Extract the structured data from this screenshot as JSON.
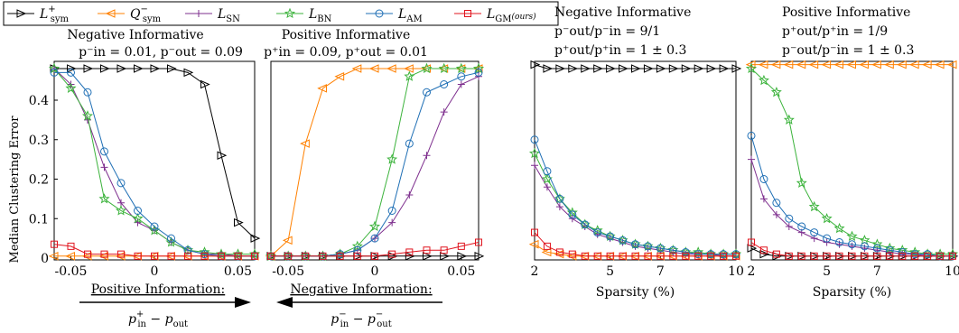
{
  "legend": {
    "entries": [
      {
        "base": "L",
        "sup": "+",
        "sub": "sym",
        "color": "#000000",
        "marker": "triangle-right"
      },
      {
        "base": "Q",
        "sup": "−",
        "sub": "sym",
        "color": "#ff8000",
        "marker": "triangle-left"
      },
      {
        "base": "L",
        "sup": "",
        "sub": "SN",
        "color": "#7e2f8e",
        "marker": "plus"
      },
      {
        "base": "L",
        "sup": "",
        "sub": "BN",
        "color": "#3cb33c",
        "marker": "star"
      },
      {
        "base": "L",
        "sup": "",
        "sub": "AM",
        "color": "#1f6fb5",
        "marker": "circle"
      },
      {
        "base": "L",
        "sup": "",
        "sub": "GM",
        "sub2": "(ours)",
        "color": "#e0141e",
        "marker": "square"
      }
    ]
  },
  "shared": {
    "ylabel": "Median Clustering Error",
    "xlabel_sparsity": "Sparsity (%)"
  },
  "bottom_labels": {
    "left_title": "Positive Information:",
    "left_formula_p1": "p",
    "left_formula_sup1": "+",
    "left_formula_sub1": "in",
    "left_formula_op": " − ",
    "left_formula_p2": "p",
    "left_formula_sub2": "out",
    "right_title": "Negative Information:",
    "right_formula_p1": "p",
    "right_formula_sup1": "−",
    "right_formula_sub1": "in",
    "right_formula_op": " − ",
    "right_formula_p2": "p",
    "right_formula_sup2": "−",
    "right_formula_sub2": "out"
  },
  "panel_titles": {
    "p1_line1": "Negative Informative",
    "p1_line2": "p⁻in = 0.01, p⁻out = 0.09",
    "p2_line1": "Positive Informative",
    "p2_line2": "p⁺in = 0.09, p⁺out = 0.01",
    "p3_line1": "Negative Informative",
    "p3_line2": "p⁻out/p⁻in = 9/1",
    "p3_line3": "p⁺out/p⁺in = 1 ± 0.3",
    "p4_line1": "Positive Informative",
    "p4_line2": "p⁺out/p⁺in = 1/9",
    "p4_line3": "p⁻out/p⁻in = 1 ± 0.3"
  },
  "chart_data": [
    {
      "type": "line",
      "panel": 1,
      "x": [
        -0.06,
        -0.05,
        -0.04,
        -0.03,
        -0.02,
        -0.01,
        0,
        0.01,
        0.02,
        0.03,
        0.04,
        0.05,
        0.06
      ],
      "xlim": [
        -0.06,
        0.06
      ],
      "xticks": [
        -0.05,
        0,
        0.05
      ],
      "xticklabels": [
        "-0.05",
        "0",
        "0.05"
      ],
      "ylim": [
        0,
        0.48
      ],
      "yticks": [
        0,
        0.1,
        0.2,
        0.3,
        0.4
      ],
      "yticklabels": [
        "0",
        "0.1",
        "0.2",
        "0.3",
        "0.4"
      ],
      "series": [
        {
          "name": "Lsym+",
          "values": [
            0.48,
            0.48,
            0.48,
            0.48,
            0.48,
            0.48,
            0.48,
            0.48,
            0.47,
            0.44,
            0.26,
            0.09,
            0.05
          ]
        },
        {
          "name": "Qsym-",
          "values": [
            0.005,
            0.005,
            0.005,
            0.005,
            0.005,
            0.005,
            0.005,
            0.005,
            0.005,
            0.005,
            0.005,
            0.005,
            0.005
          ]
        },
        {
          "name": "LSN",
          "values": [
            0.48,
            0.44,
            0.35,
            0.23,
            0.14,
            0.09,
            0.07,
            0.04,
            0.02,
            0.01,
            0.01,
            0.005,
            0.005
          ]
        },
        {
          "name": "LBN",
          "values": [
            0.48,
            0.43,
            0.36,
            0.15,
            0.12,
            0.1,
            0.07,
            0.04,
            0.02,
            0.015,
            0.01,
            0.01,
            0.01
          ]
        },
        {
          "name": "LAM",
          "values": [
            0.47,
            0.47,
            0.42,
            0.27,
            0.19,
            0.12,
            0.08,
            0.05,
            0.02,
            0.01,
            0.005,
            0.005,
            0.005
          ]
        },
        {
          "name": "LGM(ours)",
          "values": [
            0.035,
            0.03,
            0.01,
            0.01,
            0.01,
            0.005,
            0.005,
            0.005,
            0.005,
            0.005,
            0.005,
            0.005,
            0.005
          ]
        }
      ]
    },
    {
      "type": "line",
      "panel": 2,
      "x": [
        -0.06,
        -0.05,
        -0.04,
        -0.03,
        -0.02,
        -0.01,
        0,
        0.01,
        0.02,
        0.03,
        0.04,
        0.05,
        0.06
      ],
      "xlim": [
        -0.06,
        0.06
      ],
      "xticks": [
        -0.05,
        0,
        0.05
      ],
      "xticklabels": [
        "-0.05",
        "0",
        "0.05"
      ],
      "ylim": [
        0,
        0.48
      ],
      "series": [
        {
          "name": "Lsym+",
          "values": [
            0.005,
            0.005,
            0.005,
            0.005,
            0.005,
            0.005,
            0.005,
            0.005,
            0.005,
            0.005,
            0.005,
            0.005,
            0.005
          ]
        },
        {
          "name": "Qsym-",
          "values": [
            0.005,
            0.045,
            0.29,
            0.43,
            0.46,
            0.48,
            0.48,
            0.48,
            0.48,
            0.48,
            0.48,
            0.48,
            0.48
          ]
        },
        {
          "name": "LSN",
          "values": [
            0.005,
            0.005,
            0.005,
            0.005,
            0.01,
            0.02,
            0.05,
            0.09,
            0.16,
            0.26,
            0.37,
            0.44,
            0.46
          ]
        },
        {
          "name": "LBN",
          "values": [
            0.005,
            0.005,
            0.005,
            0.005,
            0.01,
            0.03,
            0.08,
            0.25,
            0.46,
            0.48,
            0.48,
            0.48,
            0.48
          ]
        },
        {
          "name": "LAM",
          "values": [
            0.005,
            0.005,
            0.005,
            0.005,
            0.01,
            0.02,
            0.05,
            0.12,
            0.29,
            0.42,
            0.44,
            0.46,
            0.47
          ]
        },
        {
          "name": "LGM(ours)",
          "values": [
            0.005,
            0.005,
            0.005,
            0.005,
            0.005,
            0.005,
            0.005,
            0.01,
            0.015,
            0.02,
            0.02,
            0.03,
            0.04
          ]
        }
      ]
    },
    {
      "type": "line",
      "panel": 3,
      "x": [
        2,
        2.5,
        3,
        3.5,
        4,
        4.5,
        5,
        5.5,
        6,
        6.5,
        7,
        7.5,
        8,
        8.5,
        9,
        9.5,
        10
      ],
      "xlim": [
        2,
        10
      ],
      "xticks": [
        2,
        5,
        7,
        10
      ],
      "xticklabels": [
        "2",
        "5",
        "7",
        "10"
      ],
      "xlabel": "Sparsity (%)",
      "ylim": [
        0,
        0.48
      ],
      "series": [
        {
          "name": "Lsym+",
          "values": [
            0.49,
            0.48,
            0.48,
            0.48,
            0.48,
            0.48,
            0.48,
            0.48,
            0.48,
            0.48,
            0.48,
            0.48,
            0.48,
            0.48,
            0.48,
            0.48,
            0.48
          ]
        },
        {
          "name": "Qsym-",
          "values": [
            0.035,
            0.015,
            0.01,
            0.005,
            0.005,
            0.005,
            0.005,
            0.005,
            0.005,
            0.005,
            0.005,
            0.005,
            0.005,
            0.005,
            0.005,
            0.005,
            0.005
          ]
        },
        {
          "name": "LSN",
          "values": [
            0.235,
            0.18,
            0.13,
            0.1,
            0.08,
            0.06,
            0.05,
            0.04,
            0.03,
            0.025,
            0.02,
            0.015,
            0.01,
            0.01,
            0.01,
            0.005,
            0.005
          ]
        },
        {
          "name": "LBN",
          "values": [
            0.265,
            0.2,
            0.15,
            0.115,
            0.085,
            0.07,
            0.055,
            0.045,
            0.035,
            0.03,
            0.025,
            0.02,
            0.015,
            0.015,
            0.01,
            0.01,
            0.01
          ]
        },
        {
          "name": "LAM",
          "values": [
            0.3,
            0.22,
            0.15,
            0.11,
            0.085,
            0.065,
            0.055,
            0.045,
            0.035,
            0.03,
            0.025,
            0.02,
            0.015,
            0.01,
            0.01,
            0.01,
            0.01
          ]
        },
        {
          "name": "LGM(ours)",
          "values": [
            0.065,
            0.03,
            0.015,
            0.01,
            0.005,
            0.005,
            0.005,
            0.005,
            0.005,
            0.005,
            0.005,
            0.005,
            0.005,
            0.005,
            0.005,
            0.005,
            0.005
          ]
        }
      ]
    },
    {
      "type": "line",
      "panel": 4,
      "x": [
        2,
        2.5,
        3,
        3.5,
        4,
        4.5,
        5,
        5.5,
        6,
        6.5,
        7,
        7.5,
        8,
        8.5,
        9,
        9.5,
        10
      ],
      "xlim": [
        2,
        10
      ],
      "xticks": [
        2,
        5,
        7,
        10
      ],
      "xticklabels": [
        "2",
        "5",
        "7",
        "10"
      ],
      "xlabel": "Sparsity (%)",
      "ylim": [
        0,
        0.48
      ],
      "series": [
        {
          "name": "Lsym+",
          "values": [
            0.025,
            0.01,
            0.005,
            0.005,
            0.005,
            0.005,
            0.005,
            0.005,
            0.005,
            0.005,
            0.005,
            0.005,
            0.005,
            0.005,
            0.005,
            0.005,
            0.005
          ]
        },
        {
          "name": "Qsym-",
          "values": [
            0.49,
            0.49,
            0.49,
            0.49,
            0.49,
            0.49,
            0.49,
            0.49,
            0.49,
            0.49,
            0.49,
            0.49,
            0.49,
            0.49,
            0.49,
            0.49,
            0.49
          ]
        },
        {
          "name": "LSN",
          "values": [
            0.25,
            0.15,
            0.11,
            0.08,
            0.065,
            0.05,
            0.04,
            0.035,
            0.03,
            0.025,
            0.02,
            0.015,
            0.01,
            0.01,
            0.005,
            0.005,
            0.005
          ]
        },
        {
          "name": "LBN",
          "values": [
            0.48,
            0.45,
            0.42,
            0.35,
            0.19,
            0.13,
            0.1,
            0.075,
            0.055,
            0.045,
            0.035,
            0.025,
            0.02,
            0.015,
            0.01,
            0.01,
            0.01
          ]
        },
        {
          "name": "LAM",
          "values": [
            0.31,
            0.2,
            0.14,
            0.1,
            0.08,
            0.065,
            0.05,
            0.04,
            0.035,
            0.03,
            0.025,
            0.02,
            0.015,
            0.01,
            0.01,
            0.005,
            0.005
          ]
        },
        {
          "name": "LGM(ours)",
          "values": [
            0.04,
            0.02,
            0.01,
            0.005,
            0.005,
            0.005,
            0.005,
            0.005,
            0.005,
            0.005,
            0.005,
            0.005,
            0.005,
            0.005,
            0.005,
            0.005,
            0.005
          ]
        }
      ]
    }
  ]
}
